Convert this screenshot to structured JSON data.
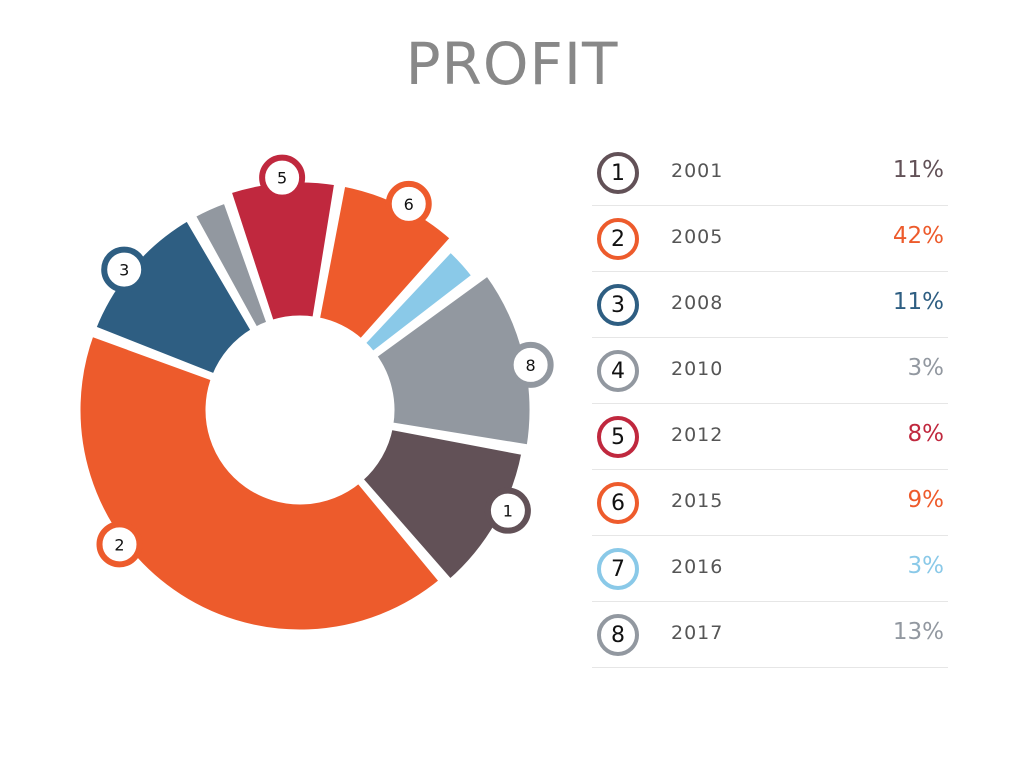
{
  "title": "PROFIT",
  "chart_data": {
    "type": "pie",
    "title": "PROFIT",
    "donut": true,
    "legend_position": "right",
    "slices": [
      {
        "id": "1",
        "year": "2001",
        "value": 11,
        "label": "11%",
        "color": "#625157"
      },
      {
        "id": "2",
        "year": "2005",
        "value": 42,
        "label": "42%",
        "color": "#ED5B2C"
      },
      {
        "id": "3",
        "year": "2008",
        "value": 11,
        "label": "11%",
        "color": "#2E5E82"
      },
      {
        "id": "4",
        "year": "2010",
        "value": 3,
        "label": "3%",
        "color": "#9298A0"
      },
      {
        "id": "5",
        "year": "2012",
        "value": 8,
        "label": "8%",
        "color": "#C0283E"
      },
      {
        "id": "6",
        "year": "2015",
        "value": 9,
        "label": "9%",
        "color": "#EE5B2C"
      },
      {
        "id": "7",
        "year": "2016",
        "value": 3,
        "label": "3%",
        "color": "#8AC9E8"
      },
      {
        "id": "8",
        "year": "2017",
        "value": 13,
        "label": "13%",
        "color": "#9298A0"
      }
    ]
  }
}
